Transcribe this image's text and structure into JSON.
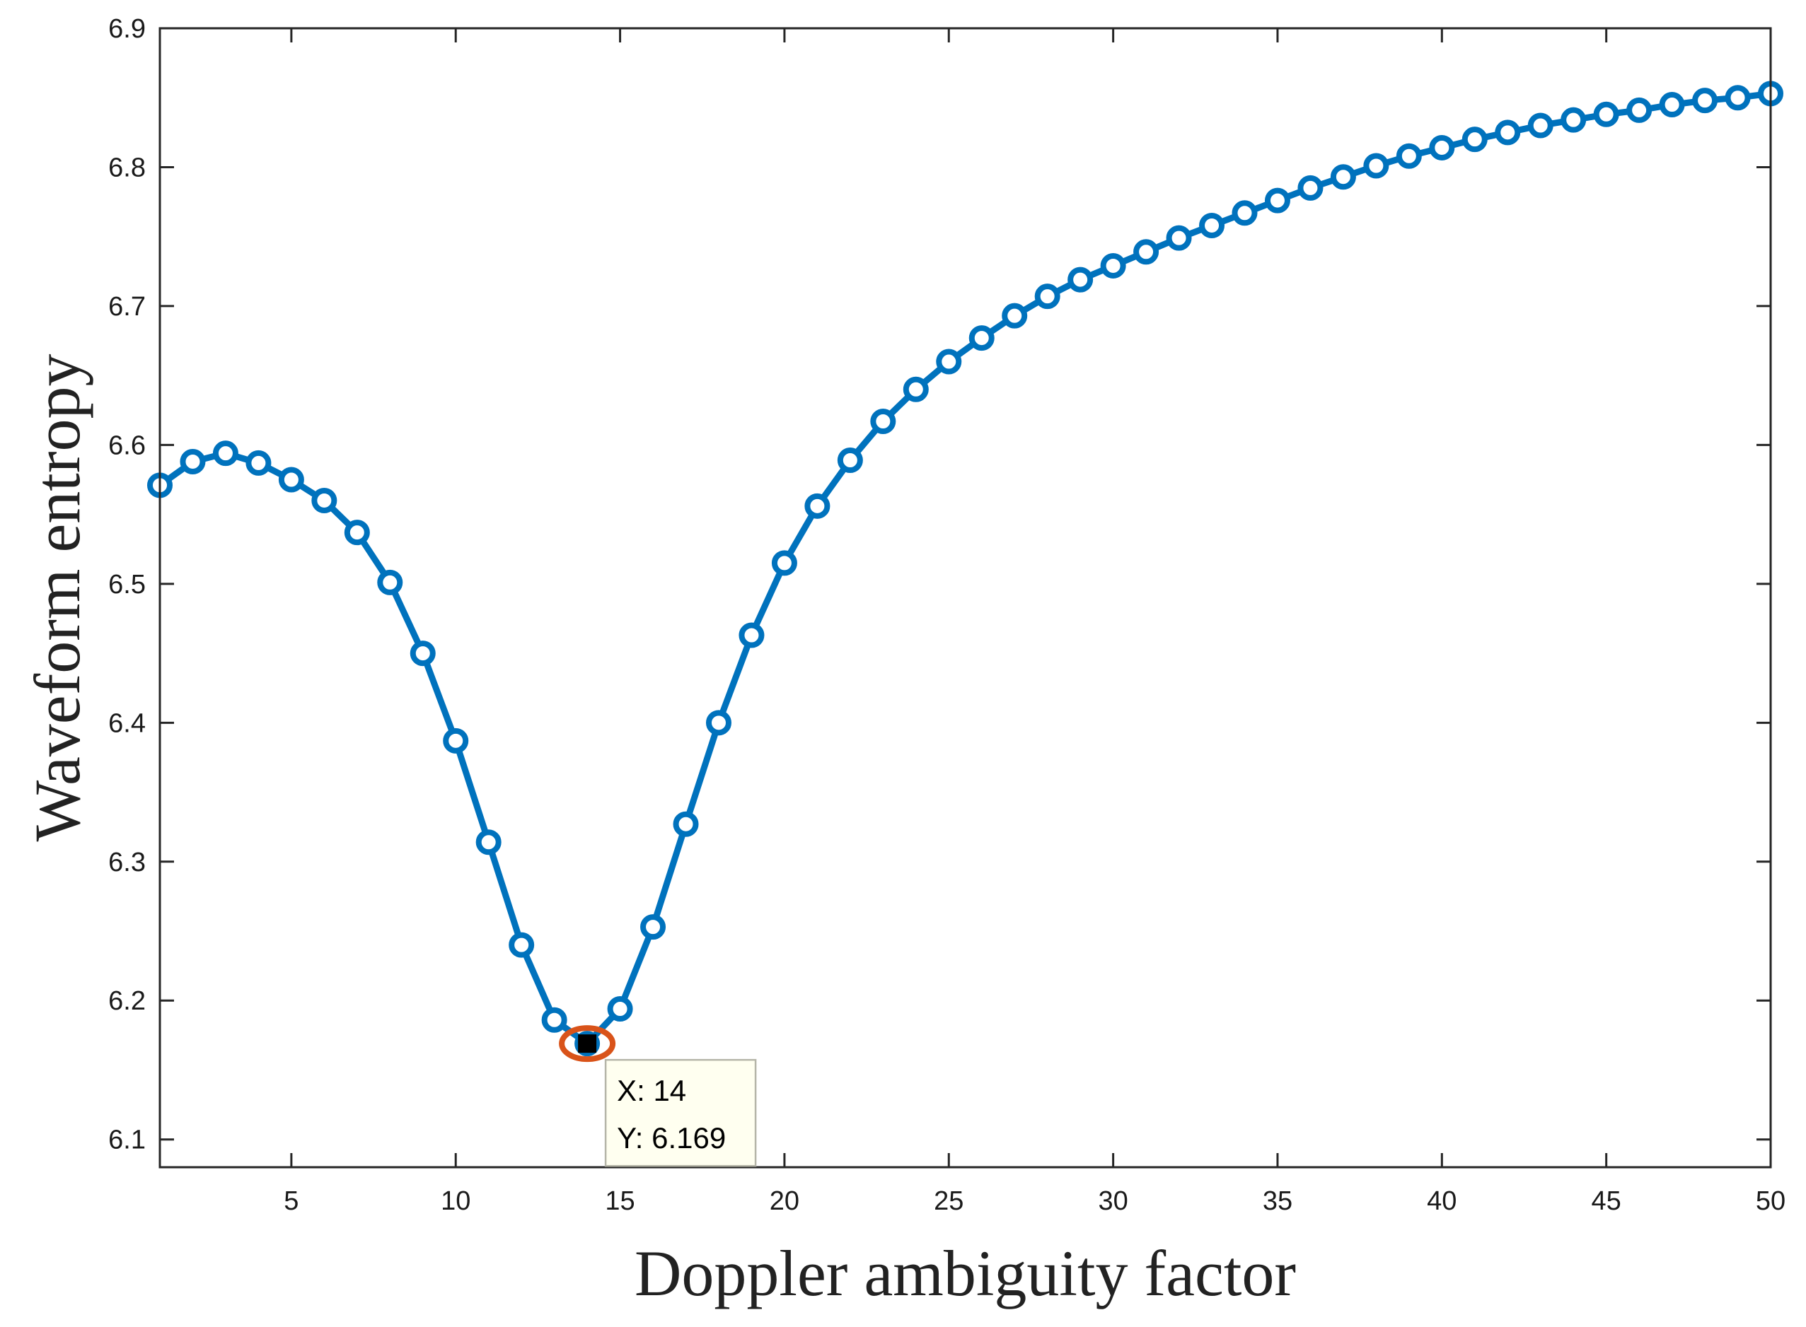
{
  "chart_data": {
    "type": "line",
    "title": "",
    "xlabel": "Doppler ambiguity factor",
    "ylabel": "Waveform entropy",
    "xlim": [
      1,
      50
    ],
    "ylim": [
      6.08,
      6.9
    ],
    "xticks": [
      5,
      10,
      15,
      20,
      25,
      30,
      35,
      40,
      45,
      50
    ],
    "yticks": [
      6.1,
      6.2,
      6.3,
      6.4,
      6.5,
      6.6,
      6.7,
      6.8,
      6.9
    ],
    "grid": false,
    "series": [
      {
        "name": "Waveform entropy",
        "color": "#0072BD",
        "marker": "circle",
        "x": [
          1,
          2,
          3,
          4,
          5,
          6,
          7,
          8,
          9,
          10,
          11,
          12,
          13,
          14,
          15,
          16,
          17,
          18,
          19,
          20,
          21,
          22,
          23,
          24,
          25,
          26,
          27,
          28,
          29,
          30,
          31,
          32,
          33,
          34,
          35,
          36,
          37,
          38,
          39,
          40,
          41,
          42,
          43,
          44,
          45,
          46,
          47,
          48,
          49,
          50
        ],
        "values": [
          6.571,
          6.588,
          6.594,
          6.587,
          6.575,
          6.56,
          6.537,
          6.501,
          6.45,
          6.387,
          6.314,
          6.24,
          6.186,
          6.169,
          6.194,
          6.253,
          6.327,
          6.4,
          6.463,
          6.515,
          6.556,
          6.589,
          6.617,
          6.64,
          6.66,
          6.677,
          6.693,
          6.707,
          6.719,
          6.729,
          6.739,
          6.749,
          6.758,
          6.767,
          6.776,
          6.785,
          6.793,
          6.801,
          6.808,
          6.814,
          6.82,
          6.825,
          6.83,
          6.834,
          6.838,
          6.841,
          6.845,
          6.848,
          6.85,
          6.853
        ]
      }
    ],
    "datatip": {
      "x": 14,
      "y": 6.169,
      "x_text": "X: 14",
      "y_text": "Y: 6.169",
      "highlight_color": "#D95319",
      "marker_color": "#000000",
      "box_color": "#FFFFF0"
    }
  }
}
